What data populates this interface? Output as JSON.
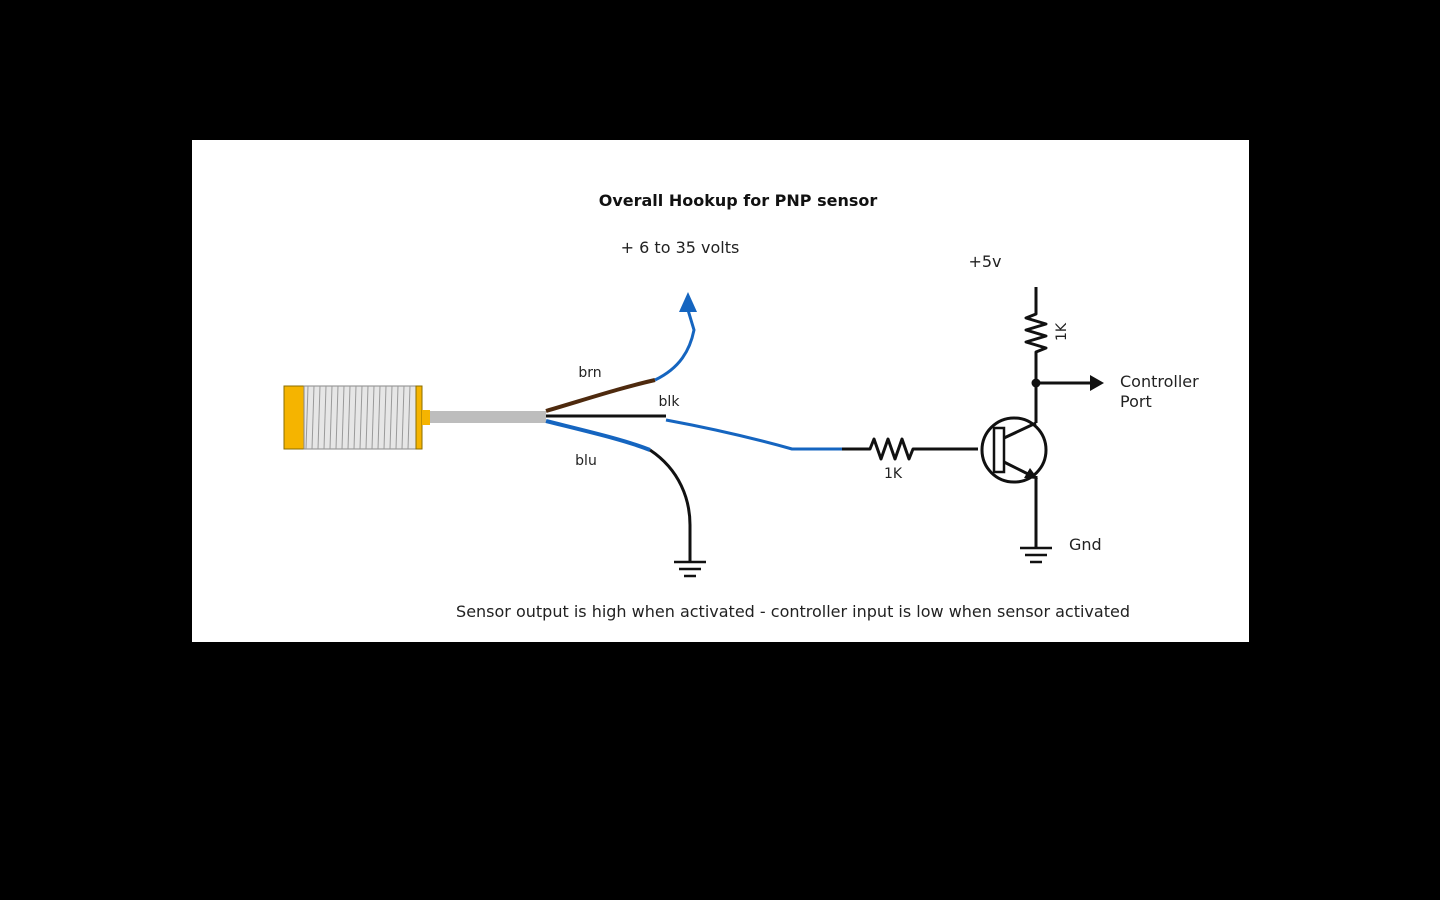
{
  "title": "Overall Hookup for PNP sensor",
  "supply_label": "+ 6 to 35 volts",
  "vcc_label": "+5v",
  "wires": {
    "brown": "brn",
    "black": "blk",
    "blue": "blu"
  },
  "resistors": {
    "pullup": "1K",
    "base": "1K"
  },
  "output": {
    "line1": "Controller",
    "line2": "Port"
  },
  "ground_label": "Gnd",
  "caption": "Sensor output is high when activated - controller input is low when sensor activated",
  "colors": {
    "wire_blue": "#1565c0",
    "wire_brown": "#4e2a0e",
    "sensor_yellow": "#f5b400",
    "cable_gray": "#bdbdbd"
  }
}
